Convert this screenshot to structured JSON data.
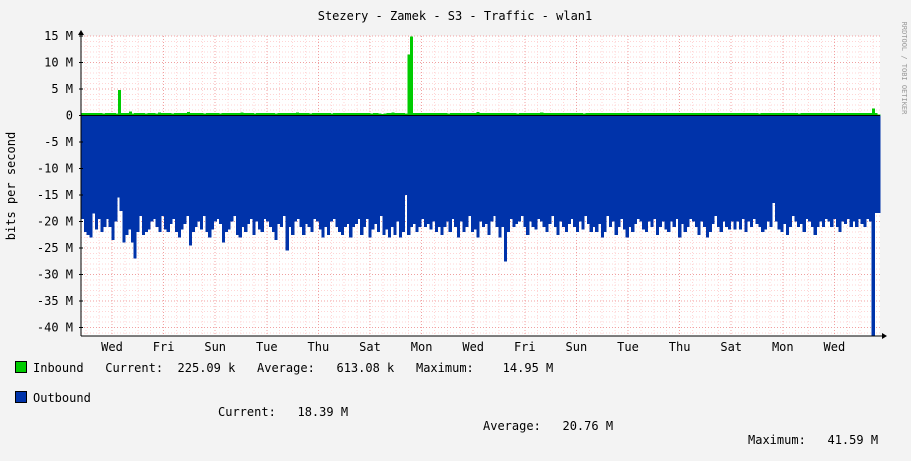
{
  "chart_data": {
    "type": "area",
    "title": "Stezery - Zamek - S3 - Traffic - wlan1",
    "ylabel": "bits per second",
    "watermark": "RRDTOOL / TOBI OETIKER",
    "ylim": [
      -41.6,
      15
    ],
    "y_ticks": [
      {
        "value": 15,
        "label": "15 M"
      },
      {
        "value": 10,
        "label": "10 M"
      },
      {
        "value": 5,
        "label": "5 M"
      },
      {
        "value": 0,
        "label": "0"
      },
      {
        "value": -5,
        "label": "-5 M"
      },
      {
        "value": -10,
        "label": "-10 M"
      },
      {
        "value": -15,
        "label": "-15 M"
      },
      {
        "value": -20,
        "label": "-20 M"
      },
      {
        "value": -25,
        "label": "-25 M"
      },
      {
        "value": -30,
        "label": "-30 M"
      },
      {
        "value": -35,
        "label": "-35 M"
      },
      {
        "value": -40,
        "label": "-40 M"
      }
    ],
    "x_tick_labels": [
      "Wed",
      "Fri",
      "Sun",
      "Tue",
      "Thu",
      "Sat",
      "Mon",
      "Wed",
      "Fri",
      "Sun",
      "Tue",
      "Thu",
      "Sat",
      "Mon",
      "Wed"
    ],
    "series": [
      {
        "name": "Inbound",
        "color": "#00cc00",
        "values": [
          0.5,
          0.5,
          0.5,
          0.5,
          0.5,
          0.5,
          0.5,
          0.5,
          0.4,
          0.5,
          0.5,
          0.5,
          0.5,
          0.4,
          4.8,
          0.5,
          0.5,
          0.5,
          0.8,
          0.4,
          0.5,
          0.5,
          0.5,
          0.5,
          0.4,
          0.5,
          0.5,
          0.5,
          0.4,
          0.6,
          0.5,
          0.5,
          0.5,
          0.5,
          0.4,
          0.5,
          0.5,
          0.5,
          0.5,
          0.5,
          0.7,
          0.5,
          0.5,
          0.5,
          0.5,
          0.5,
          0.4,
          0.5,
          0.5,
          0.5,
          0.5,
          0.5,
          0.4,
          0.5,
          0.5,
          0.5,
          0.5,
          0.5,
          0.5,
          0.5,
          0.6,
          0.5,
          0.5,
          0.5,
          0.5,
          0.4,
          0.5,
          0.5,
          0.5,
          0.5,
          0.5,
          0.5,
          0.5,
          0.4,
          0.5,
          0.5,
          0.5,
          0.5,
          0.5,
          0.5,
          0.5,
          0.6,
          0.5,
          0.5,
          0.5,
          0.5,
          0.4,
          0.5,
          0.5,
          0.5,
          0.5,
          0.5,
          0.5,
          0.5,
          0.4,
          0.5,
          0.5,
          0.5,
          0.5,
          0.5,
          0.5,
          0.5,
          0.5,
          0.5,
          0.5,
          0.5,
          0.5,
          0.5,
          0.5,
          0.4,
          0.5,
          0.5,
          0.4,
          0.3,
          0.4,
          0.5,
          0.5,
          0.6,
          0.5,
          0.5,
          0.5,
          0.5,
          0.4,
          11.5,
          14.95,
          0.5,
          0.5,
          0.5,
          0.5,
          0.5,
          0.5,
          0.5,
          0.5,
          0.5,
          0.5,
          0.5,
          0.5,
          0.5,
          0.4,
          0.5,
          0.5,
          0.5,
          0.5,
          0.5,
          0.5,
          0.5,
          0.5,
          0.5,
          0.5,
          0.7,
          0.5,
          0.5,
          0.5,
          0.5,
          0.5,
          0.5,
          0.5,
          0.5,
          0.5,
          0.5,
          0.5,
          0.5,
          0.5,
          0.5,
          0.4,
          0.5,
          0.5,
          0.5,
          0.5,
          0.5,
          0.5,
          0.5,
          0.5,
          0.6,
          0.5,
          0.5,
          0.5,
          0.5,
          0.5,
          0.5,
          0.5,
          0.5,
          0.5,
          0.5,
          0.5,
          0.5,
          0.5,
          0.5,
          0.5,
          0.4,
          0.5,
          0.5,
          0.5,
          0.5,
          0.5,
          0.5,
          0.5,
          0.5,
          0.5,
          0.5,
          0.5,
          0.5,
          0.5,
          0.5,
          0.5,
          0.5,
          0.5,
          0.5,
          0.5,
          0.5,
          0.5,
          0.5,
          0.5,
          0.5,
          0.5,
          0.5,
          0.5,
          0.5,
          0.5,
          0.5,
          0.5,
          0.5,
          0.5,
          0.5,
          0.5,
          0.5,
          0.5,
          0.5,
          0.5,
          0.5,
          0.5,
          0.5,
          0.5,
          0.5,
          0.5,
          0.5,
          0.5,
          0.5,
          0.5,
          0.5,
          0.5,
          0.5,
          0.5,
          0.5,
          0.5,
          0.5,
          0.5,
          0.5,
          0.5,
          0.5,
          0.5,
          0.5,
          0.5,
          0.5,
          0.5,
          0.4,
          0.5,
          0.5,
          0.5,
          0.5,
          0.5,
          0.5,
          0.5,
          0.5,
          0.5,
          0.5,
          0.5,
          0.5,
          0.5,
          0.5,
          0.4,
          0.5,
          0.5,
          0.5,
          0.5,
          0.5,
          0.5,
          0.5,
          0.5,
          0.5,
          0.5,
          0.5,
          0.5,
          0.5,
          0.5,
          0.5,
          0.5,
          0.5,
          0.5,
          0.5,
          0.5,
          0.5,
          0.5,
          0.5,
          0.5,
          0.5,
          0.5,
          0.5,
          1.3,
          0.5,
          0.2
        ],
        "current": "225.09 k",
        "average": "613.08 k",
        "maximum": "14.95 M"
      },
      {
        "name": "Outbound",
        "color": "#0033aa",
        "values": [
          -19.5,
          -22,
          -22.5,
          -23,
          -18.5,
          -21.5,
          -19.5,
          -22,
          -21,
          -19.5,
          -21,
          -23.5,
          -20,
          -15.5,
          -18,
          -24,
          -22.5,
          -21.5,
          -24,
          -27,
          -22,
          -19,
          -22.5,
          -22,
          -21.5,
          -20,
          -19.5,
          -21,
          -22,
          -19,
          -21.5,
          -22,
          -20.5,
          -19.5,
          -22,
          -23,
          -21.5,
          -20.5,
          -19,
          -24.5,
          -22,
          -21,
          -20,
          -21.5,
          -19,
          -22,
          -23,
          -21.5,
          -20,
          -19.5,
          -20.5,
          -24,
          -22,
          -21.5,
          -20,
          -19,
          -22.5,
          -23,
          -21,
          -22,
          -20.5,
          -19.5,
          -22.5,
          -20,
          -21.5,
          -22,
          -19.5,
          -20,
          -21,
          -22,
          -23.5,
          -20.5,
          -21,
          -19,
          -25.5,
          -21,
          -22.5,
          -20,
          -19.5,
          -21,
          -22.5,
          -20.5,
          -21,
          -22,
          -19.5,
          -20,
          -21.5,
          -23,
          -21,
          -22.5,
          -20,
          -19.5,
          -21,
          -22,
          -22.5,
          -21,
          -20.5,
          -23,
          -21,
          -20.5,
          -19.5,
          -22.5,
          -21,
          -19.5,
          -23,
          -21.5,
          -20.5,
          -22,
          -19,
          -22.5,
          -21.5,
          -23,
          -21,
          -22.5,
          -20,
          -23,
          -22,
          -15,
          -22.5,
          -21,
          -20.5,
          -22,
          -21,
          -19.5,
          -21,
          -20.5,
          -21.5,
          -20,
          -22,
          -21,
          -22.5,
          -21,
          -20,
          -22,
          -19.5,
          -21,
          -23,
          -20,
          -22,
          -21,
          -19,
          -22,
          -21.5,
          -23,
          -20,
          -21,
          -20.5,
          -22.5,
          -20,
          -19,
          -21,
          -23,
          -21,
          -27.5,
          -22,
          -19.5,
          -21,
          -20.5,
          -20,
          -19,
          -21,
          -22.5,
          -20,
          -21,
          -21.5,
          -19.5,
          -20,
          -21,
          -22,
          -20.5,
          -19,
          -21,
          -22.5,
          -20,
          -21,
          -22,
          -20.5,
          -19.5,
          -21,
          -22,
          -20,
          -21.5,
          -19,
          -20.5,
          -22,
          -21,
          -22,
          -20.5,
          -23,
          -22,
          -19,
          -21,
          -20,
          -22.5,
          -21,
          -19.5,
          -21.5,
          -23,
          -21,
          -22,
          -20.5,
          -19.5,
          -20,
          -21.5,
          -22,
          -20,
          -21,
          -19.5,
          -22.5,
          -21,
          -20,
          -21.5,
          -22,
          -20,
          -21,
          -19.5,
          -23,
          -20.5,
          -22,
          -21,
          -19.5,
          -20,
          -21,
          -22.5,
          -20,
          -21,
          -23,
          -22,
          -20.5,
          -19,
          -21,
          -22,
          -20,
          -21,
          -21.5,
          -20,
          -21.5,
          -20,
          -21.5,
          -19.5,
          -22,
          -20,
          -21,
          -19.5,
          -20.5,
          -21,
          -22,
          -21.5,
          -20,
          -21,
          -16.5,
          -20,
          -21.5,
          -22,
          -20.5,
          -22.5,
          -21,
          -19,
          -20,
          -21,
          -20.5,
          -22,
          -19.5,
          -20,
          -21,
          -22.5,
          -21,
          -20,
          -21,
          -19.5,
          -20,
          -21,
          -19.5,
          -21,
          -22,
          -20,
          -20.5,
          -19.5,
          -21,
          -20,
          -21,
          -19.5,
          -20.5,
          -21,
          -19.5,
          -20,
          -41.59,
          -18.39,
          -18.39
        ],
        "current": "18.39 M",
        "average": "20.76 M",
        "maximum": "41.59 M"
      }
    ]
  },
  "legend": {
    "current_label": "Current:",
    "average_label": "Average:",
    "maximum_label": "Maximum:"
  }
}
